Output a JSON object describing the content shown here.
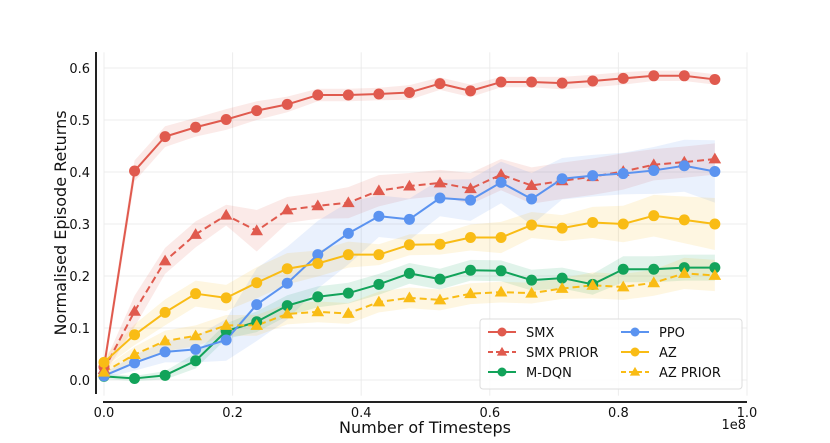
{
  "chart_data": {
    "type": "line",
    "title": "",
    "xlabel": "Number of Timesteps",
    "ylabel": "Normalised Episode Returns",
    "x_offset_label": "1e8",
    "xlim": [
      0.0,
      1.0
    ],
    "ylim": [
      -0.03,
      0.63
    ],
    "xticks": [
      0.0,
      0.2,
      0.4,
      0.6,
      0.8,
      1.0
    ],
    "xtick_labels": [
      "0.0",
      "0.2",
      "0.4",
      "0.6",
      "0.8",
      "1.0"
    ],
    "yticks": [
      0.0,
      0.1,
      0.2,
      0.3,
      0.4,
      0.5,
      0.6
    ],
    "ytick_labels": [
      "0.0",
      "0.1",
      "0.2",
      "0.3",
      "0.4",
      "0.5",
      "0.6"
    ],
    "grid": true,
    "legend": {
      "placement": "bottom-right",
      "columns": 2
    },
    "x": [
      0.0,
      0.0475,
      0.095,
      0.1425,
      0.19,
      0.2375,
      0.285,
      0.3325,
      0.38,
      0.4275,
      0.475,
      0.5225,
      0.57,
      0.6175,
      0.665,
      0.7125,
      0.76,
      0.8075,
      0.855,
      0.9025,
      0.95
    ],
    "series": [
      {
        "name": "SMX",
        "color": "#e05a4e",
        "marker": "circle",
        "linestyle": "solid",
        "values": [
          0.025,
          0.402,
          0.468,
          0.486,
          0.501,
          0.518,
          0.53,
          0.548,
          0.548,
          0.55,
          0.553,
          0.57,
          0.556,
          0.573,
          0.573,
          0.571,
          0.575,
          0.58,
          0.585,
          0.585,
          0.578
        ],
        "band": [
          0.015,
          0.02,
          0.02,
          0.018,
          0.02,
          0.018,
          0.015,
          0.012,
          0.012,
          0.012,
          0.014,
          0.012,
          0.012,
          0.01,
          0.01,
          0.012,
          0.012,
          0.012,
          0.01,
          0.01,
          0.01
        ]
      },
      {
        "name": "SMX PRIOR",
        "color": "#e05a4e",
        "marker": "triangle",
        "linestyle": "dashed",
        "values": [
          0.02,
          0.132,
          0.229,
          0.28,
          0.317,
          0.287,
          0.327,
          0.335,
          0.341,
          0.364,
          0.373,
          0.379,
          0.368,
          0.395,
          0.374,
          0.383,
          0.391,
          0.401,
          0.414,
          0.419,
          0.425
        ],
        "band": [
          0.01,
          0.03,
          0.025,
          0.025,
          0.02,
          0.04,
          0.025,
          0.025,
          0.03,
          0.03,
          0.025,
          0.025,
          0.03,
          0.03,
          0.035,
          0.035,
          0.035,
          0.035,
          0.03,
          0.03,
          0.03
        ]
      },
      {
        "name": "M-DQN",
        "color": "#12a35a",
        "marker": "circle",
        "linestyle": "solid",
        "values": [
          0.007,
          0.003,
          0.009,
          0.037,
          0.094,
          0.112,
          0.143,
          0.16,
          0.167,
          0.184,
          0.205,
          0.194,
          0.211,
          0.21,
          0.192,
          0.196,
          0.184,
          0.213,
          0.213,
          0.216,
          0.216
        ],
        "band": [
          0.005,
          0.005,
          0.008,
          0.015,
          0.015,
          0.02,
          0.02,
          0.02,
          0.02,
          0.02,
          0.02,
          0.02,
          0.02,
          0.02,
          0.02,
          0.02,
          0.02,
          0.025,
          0.025,
          0.025,
          0.025
        ]
      },
      {
        "name": "PPO",
        "color": "#5b93f0",
        "marker": "circle",
        "linestyle": "solid",
        "values": [
          0.008,
          0.033,
          0.054,
          0.059,
          0.077,
          0.145,
          0.186,
          0.241,
          0.282,
          0.315,
          0.309,
          0.35,
          0.346,
          0.38,
          0.348,
          0.387,
          0.393,
          0.397,
          0.403,
          0.412,
          0.401
        ],
        "band": [
          0.005,
          0.015,
          0.02,
          0.025,
          0.04,
          0.07,
          0.07,
          0.065,
          0.06,
          0.04,
          0.04,
          0.035,
          0.04,
          0.04,
          0.05,
          0.04,
          0.04,
          0.04,
          0.045,
          0.05,
          0.06
        ]
      },
      {
        "name": "AZ",
        "color": "#f9bc15",
        "marker": "circle",
        "linestyle": "solid",
        "values": [
          0.034,
          0.087,
          0.13,
          0.166,
          0.158,
          0.187,
          0.214,
          0.224,
          0.241,
          0.241,
          0.26,
          0.261,
          0.274,
          0.274,
          0.298,
          0.292,
          0.303,
          0.3,
          0.316,
          0.308,
          0.3
        ],
        "band": [
          0.01,
          0.02,
          0.025,
          0.025,
          0.025,
          0.03,
          0.03,
          0.025,
          0.025,
          0.02,
          0.02,
          0.02,
          0.025,
          0.03,
          0.025,
          0.025,
          0.03,
          0.035,
          0.04,
          0.045,
          0.05
        ]
      },
      {
        "name": "AZ PRIOR",
        "color": "#f9bc15",
        "marker": "triangle",
        "linestyle": "dashed",
        "values": [
          0.015,
          0.049,
          0.075,
          0.085,
          0.105,
          0.105,
          0.127,
          0.131,
          0.128,
          0.15,
          0.158,
          0.154,
          0.166,
          0.169,
          0.167,
          0.176,
          0.182,
          0.179,
          0.187,
          0.205,
          0.201
        ],
        "band": [
          0.008,
          0.015,
          0.02,
          0.02,
          0.02,
          0.02,
          0.02,
          0.02,
          0.02,
          0.02,
          0.02,
          0.02,
          0.02,
          0.02,
          0.02,
          0.02,
          0.025,
          0.025,
          0.025,
          0.03,
          0.03
        ]
      }
    ]
  }
}
